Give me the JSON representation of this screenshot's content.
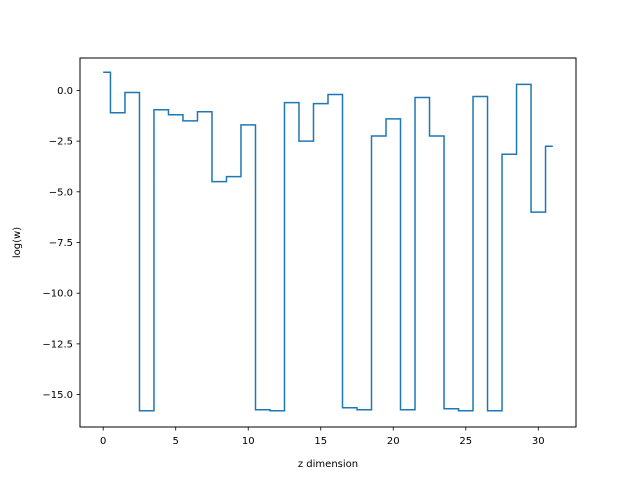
{
  "chart_data": {
    "type": "line",
    "drawstyle": "steps-mid",
    "xlabel": "z dimension",
    "ylabel": "log(w)",
    "xlim": [
      -1.6,
      32.6
    ],
    "ylim": [
      -16.6,
      1.6
    ],
    "xticks": [
      0,
      5,
      10,
      15,
      20,
      25,
      30
    ],
    "xtick_labels": [
      "0",
      "5",
      "10",
      "15",
      "20",
      "25",
      "30"
    ],
    "yticks": [
      0.0,
      -2.5,
      -5.0,
      -7.5,
      -10.0,
      -12.5,
      -15.0
    ],
    "ytick_labels": [
      "0.0",
      "−2.5",
      "−5.0",
      "−7.5",
      "−10.0",
      "−12.5",
      "−15.0"
    ],
    "grid": false,
    "series": [
      {
        "color": "#1f77b4",
        "x": [
          0,
          1,
          2,
          3,
          4,
          5,
          6,
          7,
          8,
          9,
          10,
          11,
          12,
          13,
          14,
          15,
          16,
          17,
          18,
          19,
          20,
          21,
          22,
          23,
          24,
          25,
          26,
          27,
          28,
          29,
          30,
          31
        ],
        "y": [
          0.9,
          -1.1,
          -0.1,
          -15.8,
          -0.95,
          -1.2,
          -1.5,
          -1.05,
          -4.5,
          -4.25,
          -1.7,
          -15.75,
          -15.8,
          -0.6,
          -2.5,
          -0.65,
          -0.2,
          -15.65,
          -15.75,
          -2.25,
          -1.4,
          -15.75,
          -0.35,
          -2.25,
          -15.7,
          -15.8,
          -0.3,
          -15.8,
          -3.15,
          0.3,
          -6.0,
          -2.75
        ]
      }
    ]
  }
}
